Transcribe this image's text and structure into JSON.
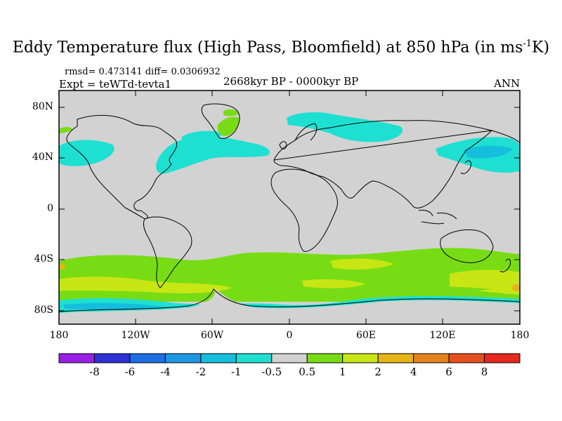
{
  "title": {
    "main": "Eddy Temperature flux (High Pass, Bloomfield) at 850 hPa (in ms",
    "superscript": "-1",
    "suffix": "K)"
  },
  "stats": "rmsd= 0.473141  diff= 0.0306932",
  "experiment": "Expt = teWTd-tevta1",
  "period": "2668kyr BP - 0000kyr BP",
  "season": "ANN",
  "axes": {
    "y_ticks": [
      "80N",
      "40N",
      "0",
      "40S",
      "80S"
    ],
    "x_ticks": [
      "180",
      "120W",
      "60W",
      "0",
      "60E",
      "120E",
      "180"
    ]
  },
  "colorbar": {
    "labels": [
      "-8",
      "-6",
      "-4",
      "-2",
      "-1",
      "-0.5",
      "0.5",
      "1",
      "2",
      "4",
      "6",
      "8"
    ],
    "colors": [
      "#9a1ee6",
      "#3030d8",
      "#1e6ee6",
      "#1e96e6",
      "#14bedc",
      "#1ee0d2",
      "#d2d2d2",
      "#78dc14",
      "#c8e614",
      "#e6b414",
      "#e6821e",
      "#e6501e",
      "#e6281e"
    ]
  }
}
